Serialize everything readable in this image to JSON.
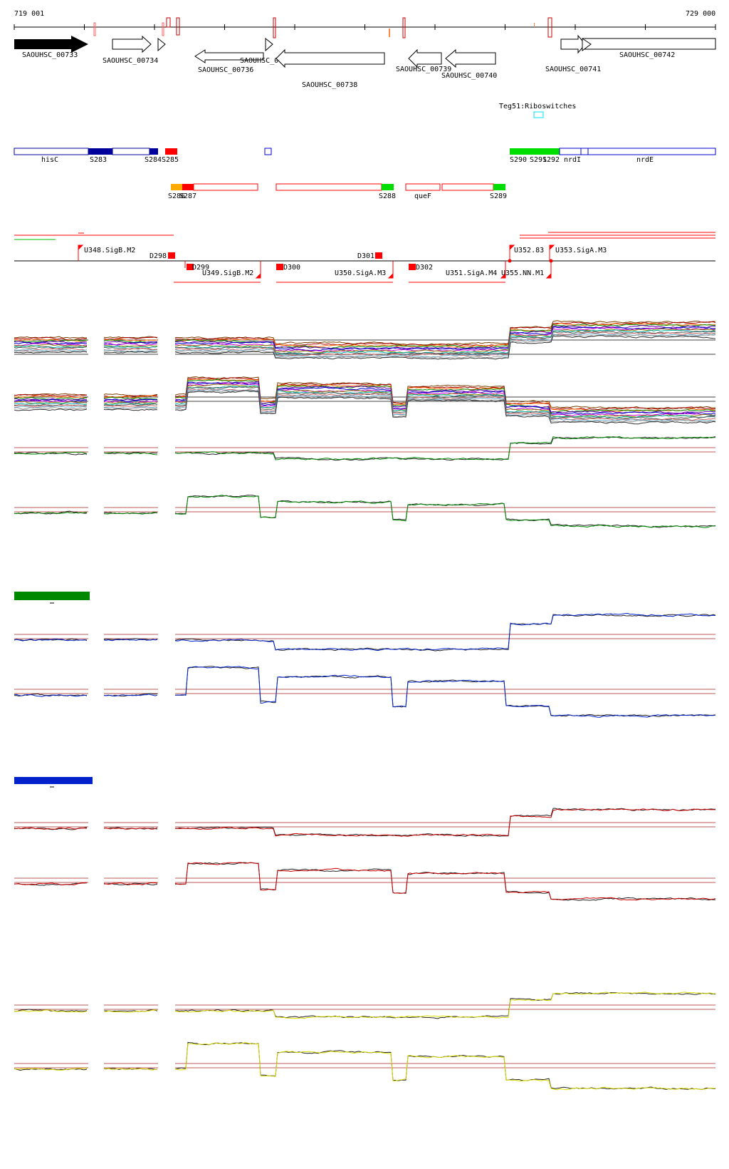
{
  "ruler": {
    "start_label": "719 001",
    "end_label": "729 000"
  },
  "genes": [
    {
      "id": "SAOUHSC_00733"
    },
    {
      "id": "SAOUHSC_00734"
    },
    {
      "id": "SAOUHSC_00736"
    },
    {
      "id": "SAOUHSC_00737"
    },
    {
      "id": "SAOUHSC_00738"
    },
    {
      "id": "SAOUHSC_00739"
    },
    {
      "id": "SAOUHSC_00740"
    },
    {
      "id": "SAOUHSC_00741"
    },
    {
      "id": "SAOUHSC_00742"
    }
  ],
  "riboswitch": {
    "label": "Teg51:Riboswitches",
    "color": "#00e0ff"
  },
  "annotations_row1": [
    "hisC",
    "S283",
    "S284",
    "S285",
    "S290",
    "S291",
    "S292",
    "nrdI",
    "nrdE"
  ],
  "annotations_row2": [
    "S286",
    "S287",
    "S288",
    "queF",
    "S289"
  ],
  "promoters": [
    "U348.SigB.M2",
    "U349.SigB.M2",
    "U350.SigA.M3",
    "U351.SigA.M4",
    "U352.83",
    "U353.SigA.M3",
    "U355.NN.M1"
  ],
  "terminators": [
    "D298",
    "D299",
    "D300",
    "D301",
    "D302"
  ],
  "colors": {
    "arrow_fill": "#000000",
    "feature_blue": "#00009a",
    "feature_red": "#ff0000",
    "feature_green": "#00dd00",
    "feature_orange": "#ffaa00",
    "panel_green": "#008800",
    "panel_blue": "#0022cc",
    "panel_red": "#cc0000",
    "panel_yellow": "#dddd00",
    "baseline": "#aa2222"
  }
}
